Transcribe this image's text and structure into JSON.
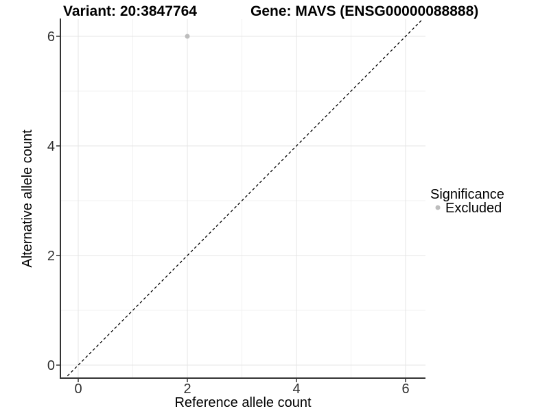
{
  "chart_data": {
    "type": "scatter",
    "title_left": "Variant: 20:3847764",
    "title_right": "Gene: MAVS (ENSG00000088888)",
    "xlabel": "Reference allele count",
    "ylabel": "Alternative allele count",
    "xlim": [
      -0.33,
      6.36
    ],
    "ylim": [
      -0.28,
      6.31
    ],
    "xticks": [
      0,
      2,
      4,
      6
    ],
    "yticks": [
      0,
      2,
      4,
      6
    ],
    "minor_xticks": [
      1,
      3,
      5
    ],
    "minor_yticks": [
      1,
      3,
      5
    ],
    "grid": true,
    "points": [
      {
        "x": 2,
        "y": 6,
        "series": "Excluded"
      }
    ],
    "identity_line": {
      "style": "dashed",
      "slope": 1,
      "intercept": 0,
      "label": "y = x"
    },
    "legend": {
      "title": "Significance",
      "position": "right",
      "items": [
        {
          "label": "Excluded",
          "color": "#bdbdbd"
        }
      ]
    },
    "colors": {
      "point": "#bdbdbd",
      "major_grid": "#e4e4e4",
      "minor_grid": "#f1f1f1",
      "axis": "#333333",
      "identity_line": "#000000",
      "background": "#ffffff"
    }
  }
}
